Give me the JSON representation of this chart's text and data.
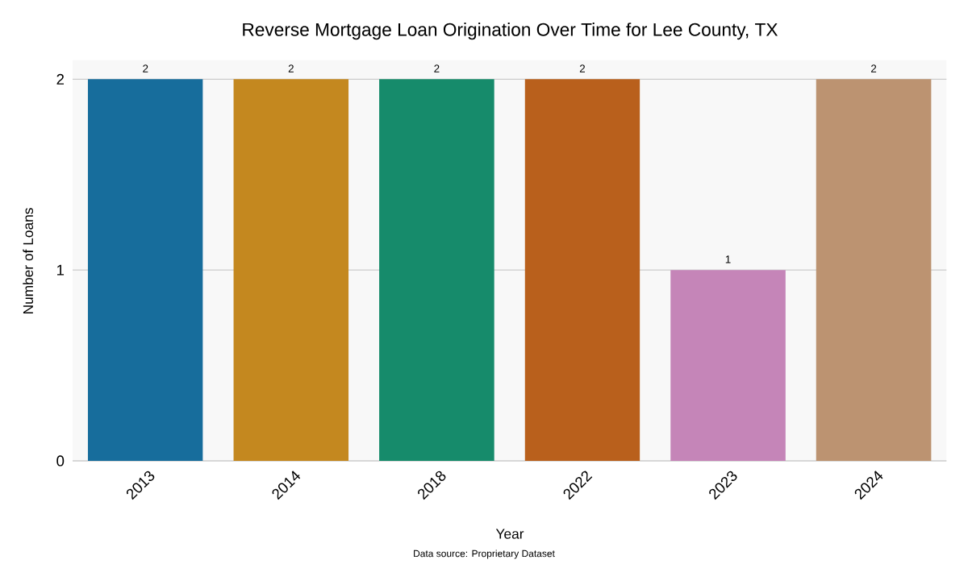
{
  "chart_data": {
    "type": "bar",
    "title": "Reverse Mortgage Loan Origination Over Time for Lee County, TX",
    "xlabel": "Year",
    "ylabel": "Number of Loans",
    "categories": [
      "2013",
      "2014",
      "2018",
      "2022",
      "2023",
      "2024"
    ],
    "values": [
      2,
      2,
      2,
      2,
      1,
      2
    ],
    "colors": [
      "#176d9c",
      "#c4881f",
      "#168b6b",
      "#b9601c",
      "#c585b8",
      "#bc9371"
    ],
    "ylim": [
      0,
      2.1
    ],
    "yticks": [
      0,
      1,
      2
    ],
    "grid": "y",
    "data_labels": true,
    "annotations": [
      "Data source: Proprietary Dataset"
    ]
  }
}
